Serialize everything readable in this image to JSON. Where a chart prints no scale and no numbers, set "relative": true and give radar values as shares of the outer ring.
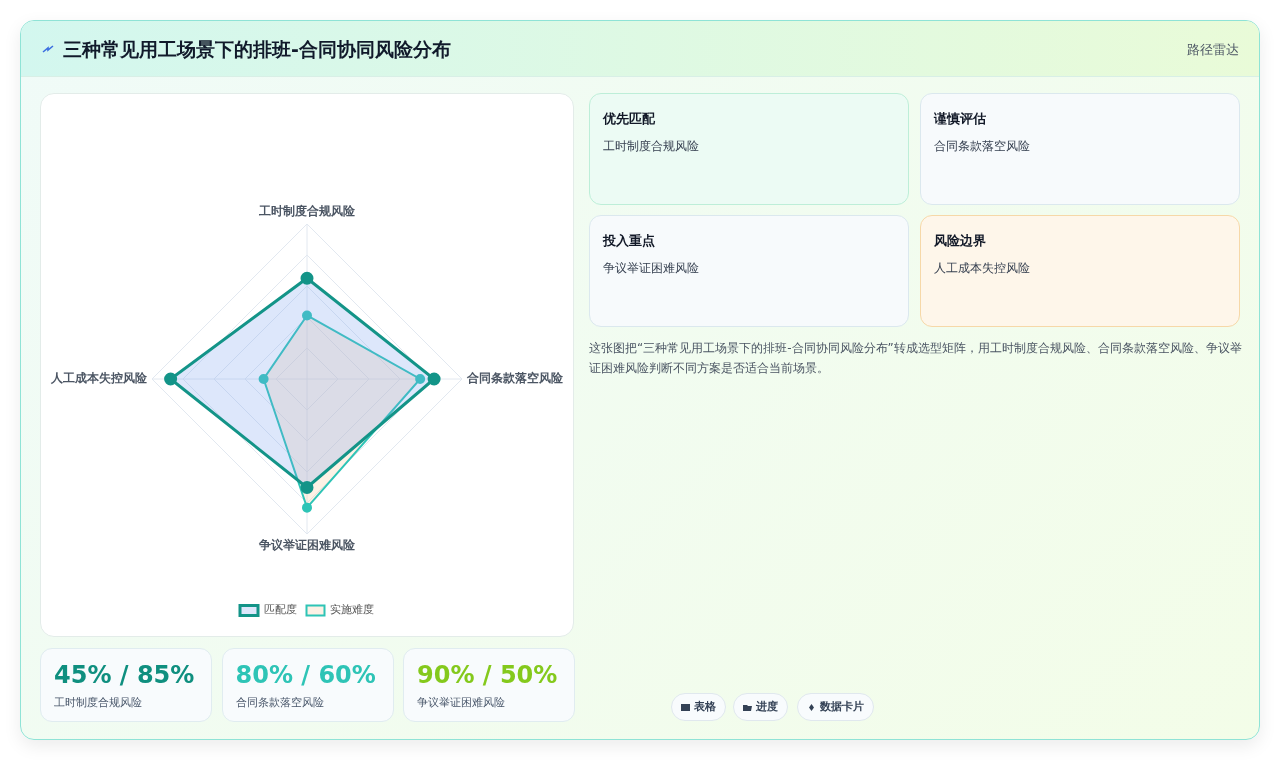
{
  "chart_data": [
    {
      "type": "radar",
      "title": "三种常见用工场景下的排班-合同协同风险分布",
      "relative": true,
      "categories": [
        "工时制度合规风险",
        "合同条款落空风险",
        "争议举证困难风险",
        "人工成本失控风险"
      ],
      "series": [
        {
          "name": "匹配度",
          "color": "#139488",
          "values": [
            0.65,
            0.82,
            0.7,
            0.88
          ]
        },
        {
          "name": "实施难度",
          "color": "#2ec4b6",
          "values": [
            0.41,
            0.73,
            0.83,
            0.28
          ]
        }
      ],
      "grid": true,
      "legend": "bottom",
      "marker": "circle"
    },
    {
      "type": "other",
      "subtitle": "路径雷达",
      "annotations": [
        "优先匹配",
        "工时制度合规风险",
        "谨慎评估",
        "合同条款落空风险",
        "投入重点",
        "争议举证困难风险",
        "风险边界",
        "人工成本失控风险",
        "这张图把“三种常见用工场景下的排班-合同协同风险分布”转成选型矩阵，用工时制度合规风险、合同条款落空风险、争议举证困难风险判断不同方案是否适合当前场景。",
        "45% / 85%",
        "工时制度合规风险",
        "80% / 60%",
        "合同条款落空风险",
        "90% / 50%",
        "争议举证困难风险",
        "表格",
        "进度",
        "数据卡片"
      ]
    }
  ]
}
